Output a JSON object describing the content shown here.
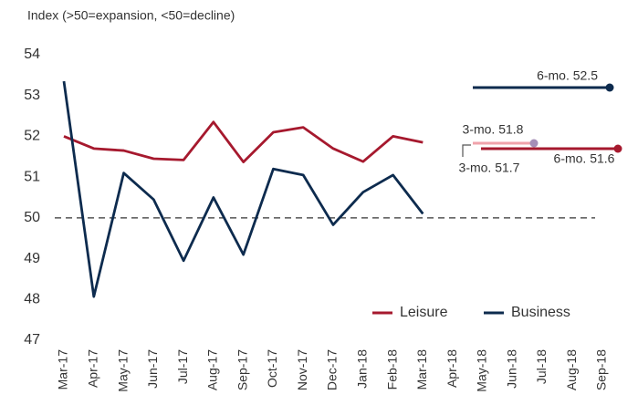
{
  "chart_data": {
    "type": "line",
    "subtitle": "Index (>50=expansion, <50=decline)",
    "categories": [
      "Mar-17",
      "Apr-17",
      "May-17",
      "Jun-17",
      "Jul-17",
      "Aug-17",
      "Sep-17",
      "Oct-17",
      "Nov-17",
      "Dec-17",
      "Jan-18",
      "Feb-18",
      "Mar-18",
      "Apr-18",
      "May-18",
      "Jun-18",
      "Jul-18",
      "Aug-18",
      "Sep-18"
    ],
    "series": [
      {
        "name": "Leisure",
        "color": "#a6192e",
        "values": [
          52.0,
          51.7,
          51.65,
          51.45,
          51.42,
          52.35,
          51.37,
          52.1,
          52.22,
          51.7,
          51.38,
          52.0,
          51.85,
          null,
          null,
          null,
          null,
          null,
          null
        ]
      },
      {
        "name": "Business",
        "color": "#0d2b4e",
        "values": [
          53.35,
          48.07,
          51.1,
          50.45,
          48.95,
          50.5,
          49.1,
          51.2,
          51.05,
          49.83,
          50.63,
          51.05,
          50.1,
          null,
          null,
          null,
          null,
          null,
          null
        ]
      }
    ],
    "reference_line": 50,
    "annotations": [
      {
        "text": "6-mo. 52.5",
        "color": "#0d2b4e"
      },
      {
        "text": "3-mo. 51.8",
        "color": "#f0a3ab"
      },
      {
        "text": "6-mo. 51.6",
        "color": "#a6192e"
      },
      {
        "text": "3-mo. 51.7",
        "color": "#555555"
      }
    ],
    "ylim": [
      47,
      54
    ],
    "yticks": [
      47,
      48,
      49,
      50,
      51,
      52,
      53,
      54
    ],
    "grid": false,
    "legend": "lower right"
  }
}
